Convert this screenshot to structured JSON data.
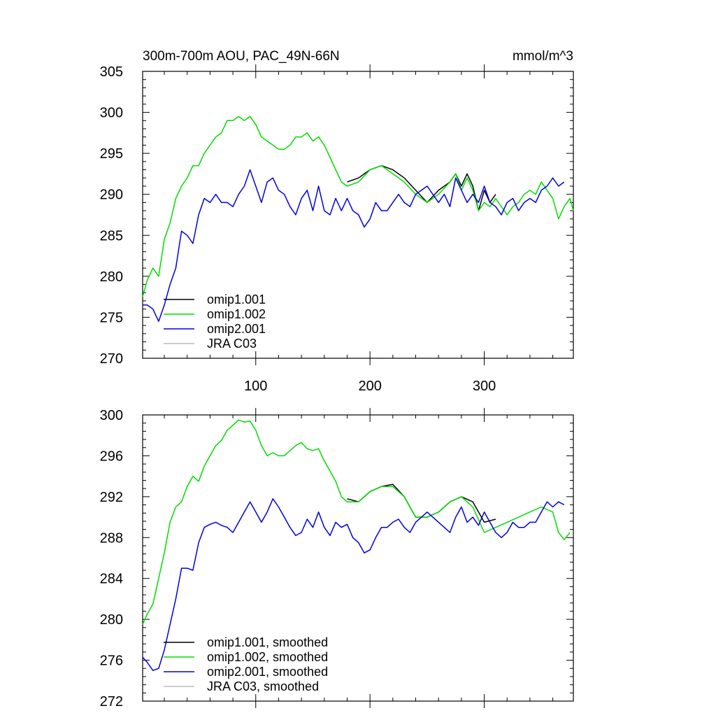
{
  "page_title": "300m-700m AOU, PAC_49N-66N",
  "units": "mmol/m^3",
  "colors": {
    "omip1_001": "#000000",
    "omip1_002": "#00dd00",
    "omip2_001": "#0000dd",
    "jra_c03": "#bbbbbb"
  },
  "chart_data": [
    {
      "id": "raw",
      "type": "line",
      "title": "300m-700m AOU, PAC_49N-66N",
      "units": "mmol/m^3",
      "xlim": [
        1,
        378
      ],
      "ylim": [
        270,
        305
      ],
      "x_ticks": [
        100,
        200,
        300
      ],
      "x_tick_labels": [
        "100",
        "200",
        "300"
      ],
      "y_ticks": [
        270,
        275,
        280,
        285,
        290,
        295,
        300,
        305
      ],
      "y_tick_labels": [
        "270",
        "275",
        "280",
        "285",
        "290",
        "295",
        "300",
        "305"
      ],
      "legend": [
        "omip1.001",
        "omip1.002",
        "omip2.001",
        "JRA C03"
      ],
      "series": [
        {
          "name": "omip1.001",
          "x": [
            180,
            190,
            200,
            210,
            220,
            230,
            240,
            250,
            260,
            270,
            275,
            280,
            285,
            290,
            295,
            300,
            305,
            310
          ],
          "values": [
            291.5,
            292.0,
            293.0,
            293.5,
            293.0,
            292.0,
            290.5,
            289.0,
            290.5,
            291.5,
            292.5,
            291.0,
            292.5,
            291.0,
            288.0,
            290.5,
            289.0,
            290.0
          ]
        },
        {
          "name": "omip1.002",
          "x": [
            1,
            5,
            10,
            15,
            20,
            25,
            30,
            35,
            40,
            45,
            50,
            55,
            60,
            65,
            70,
            75,
            80,
            85,
            90,
            95,
            100,
            105,
            110,
            115,
            120,
            125,
            130,
            135,
            140,
            145,
            150,
            155,
            160,
            165,
            170,
            175,
            180,
            190,
            200,
            210,
            220,
            230,
            240,
            250,
            260,
            270,
            275,
            280,
            285,
            290,
            295,
            300,
            305,
            310,
            315,
            320,
            325,
            330,
            335,
            340,
            345,
            350,
            355,
            360,
            365,
            370,
            375,
            378
          ],
          "values": [
            277.5,
            279.5,
            281.0,
            280.0,
            284.5,
            286.5,
            289.5,
            291.0,
            292.0,
            293.5,
            293.5,
            295.0,
            296.0,
            297.0,
            297.5,
            299.0,
            299.0,
            299.5,
            299.0,
            299.5,
            298.5,
            297.0,
            296.5,
            296.0,
            295.5,
            295.5,
            296.0,
            297.0,
            297.0,
            297.5,
            296.5,
            297.0,
            296.0,
            294.5,
            293.0,
            291.5,
            291.0,
            291.5,
            293.0,
            293.5,
            292.5,
            291.5,
            290.0,
            289.0,
            290.0,
            291.5,
            292.5,
            290.5,
            292.0,
            290.5,
            288.0,
            289.0,
            288.5,
            289.5,
            288.5,
            287.5,
            288.5,
            289.0,
            290.0,
            290.5,
            290.0,
            291.5,
            290.5,
            289.5,
            287.0,
            288.5,
            289.5,
            288.0
          ]
        },
        {
          "name": "omip2.001",
          "x": [
            1,
            5,
            10,
            15,
            20,
            25,
            30,
            35,
            40,
            45,
            50,
            55,
            60,
            65,
            70,
            75,
            80,
            85,
            90,
            95,
            100,
            105,
            110,
            115,
            120,
            125,
            130,
            135,
            140,
            145,
            150,
            155,
            160,
            165,
            170,
            175,
            180,
            185,
            190,
            195,
            200,
            205,
            210,
            215,
            220,
            225,
            230,
            235,
            240,
            245,
            250,
            255,
            260,
            265,
            270,
            275,
            280,
            285,
            290,
            295,
            300,
            305,
            310,
            315,
            320,
            325,
            330,
            335,
            340,
            345,
            350,
            355,
            360,
            365,
            370
          ],
          "values": [
            276.5,
            276.5,
            276.0,
            274.5,
            276.5,
            279.0,
            281.0,
            285.5,
            285.0,
            284.0,
            287.5,
            289.5,
            289.0,
            290.0,
            289.0,
            289.0,
            288.5,
            290.0,
            291.0,
            293.0,
            291.0,
            289.0,
            291.5,
            292.0,
            290.5,
            290.0,
            288.5,
            287.5,
            289.5,
            290.5,
            288.0,
            291.0,
            288.0,
            287.5,
            289.5,
            288.0,
            289.5,
            288.0,
            287.5,
            286.0,
            287.0,
            289.0,
            288.0,
            288.0,
            289.0,
            290.0,
            289.0,
            288.5,
            290.0,
            290.5,
            291.0,
            290.0,
            289.0,
            290.0,
            288.5,
            292.0,
            290.5,
            289.0,
            290.0,
            289.0,
            291.0,
            289.0,
            288.5,
            287.5,
            289.0,
            289.5,
            288.0,
            289.0,
            289.5,
            289.0,
            290.5,
            291.0,
            292.0,
            291.0,
            291.5
          ]
        },
        {
          "name": "JRA C03",
          "x": [],
          "values": []
        }
      ]
    },
    {
      "id": "smoothed",
      "type": "line",
      "title": "",
      "xlim": [
        1,
        378
      ],
      "ylim": [
        272,
        300
      ],
      "x_ticks": [
        100,
        200,
        300
      ],
      "x_tick_labels": [],
      "y_ticks": [
        272,
        276,
        280,
        284,
        288,
        292,
        296,
        300
      ],
      "y_tick_labels": [
        "272",
        "276",
        "280",
        "284",
        "288",
        "292",
        "296",
        "300"
      ],
      "legend": [
        "omip1.001, smoothed",
        "omip1.002, smoothed",
        "omip2.001, smoothed",
        "JRA C03, smoothed"
      ],
      "series": [
        {
          "name": "omip1.001, smoothed",
          "x": [
            180,
            190,
            200,
            210,
            220,
            230,
            240,
            250,
            260,
            270,
            280,
            290,
            300,
            310
          ],
          "values": [
            291.8,
            291.5,
            292.5,
            293.0,
            293.2,
            292.0,
            290.0,
            290.0,
            290.5,
            291.5,
            292.0,
            291.5,
            289.5,
            289.8
          ]
        },
        {
          "name": "omip1.002, smoothed",
          "x": [
            1,
            5,
            10,
            15,
            20,
            25,
            30,
            35,
            40,
            45,
            50,
            55,
            60,
            65,
            70,
            75,
            80,
            85,
            90,
            95,
            100,
            105,
            110,
            115,
            120,
            125,
            130,
            135,
            140,
            145,
            150,
            155,
            160,
            165,
            170,
            175,
            180,
            190,
            200,
            210,
            220,
            230,
            240,
            250,
            260,
            270,
            280,
            290,
            300,
            310,
            320,
            330,
            340,
            350,
            360,
            365,
            370,
            375
          ],
          "values": [
            279.5,
            280.5,
            281.5,
            284.0,
            286.5,
            289.5,
            291.0,
            291.5,
            293.0,
            294.0,
            293.5,
            295.0,
            296.0,
            297.0,
            297.5,
            298.5,
            299.0,
            299.5,
            299.3,
            299.4,
            298.5,
            297.0,
            296.0,
            296.3,
            296.0,
            296.0,
            296.5,
            297.0,
            297.3,
            296.7,
            296.5,
            296.7,
            295.5,
            294.5,
            293.5,
            292.0,
            291.5,
            291.5,
            292.5,
            293.0,
            293.0,
            292.0,
            290.0,
            290.0,
            290.5,
            291.5,
            292.0,
            291.0,
            288.5,
            289.0,
            289.5,
            290.0,
            290.5,
            291.0,
            290.5,
            288.5,
            287.8,
            288.5
          ]
        },
        {
          "name": "omip2.001, smoothed",
          "x": [
            1,
            5,
            10,
            15,
            20,
            25,
            30,
            35,
            40,
            45,
            50,
            55,
            60,
            65,
            70,
            75,
            80,
            85,
            90,
            95,
            100,
            105,
            110,
            115,
            120,
            125,
            130,
            135,
            140,
            145,
            150,
            155,
            160,
            165,
            170,
            175,
            180,
            185,
            190,
            195,
            200,
            205,
            210,
            215,
            220,
            225,
            230,
            235,
            240,
            245,
            250,
            255,
            260,
            265,
            270,
            275,
            280,
            285,
            290,
            295,
            300,
            305,
            310,
            315,
            320,
            325,
            330,
            335,
            340,
            345,
            350,
            355,
            360,
            365,
            370
          ],
          "values": [
            276.3,
            275.8,
            275.0,
            275.2,
            277.0,
            279.5,
            282.0,
            285.0,
            285.0,
            284.8,
            287.5,
            289.0,
            289.3,
            289.5,
            289.2,
            289.0,
            288.5,
            289.5,
            290.5,
            291.5,
            290.5,
            289.5,
            290.5,
            291.8,
            291.0,
            290.0,
            289.0,
            288.2,
            288.5,
            289.8,
            289.0,
            290.5,
            289.0,
            288.2,
            289.5,
            289.0,
            289.3,
            288.0,
            287.5,
            286.5,
            286.8,
            288.0,
            289.0,
            289.0,
            289.5,
            289.8,
            289.0,
            288.5,
            289.5,
            290.0,
            290.5,
            290.0,
            289.5,
            289.0,
            288.5,
            290.0,
            291.0,
            289.5,
            290.0,
            289.2,
            290.5,
            289.5,
            288.5,
            288.0,
            288.5,
            289.5,
            289.0,
            289.0,
            289.5,
            289.5,
            290.5,
            291.5,
            291.0,
            291.5,
            291.2
          ]
        },
        {
          "name": "JRA C03, smoothed",
          "x": [],
          "values": []
        }
      ]
    }
  ]
}
